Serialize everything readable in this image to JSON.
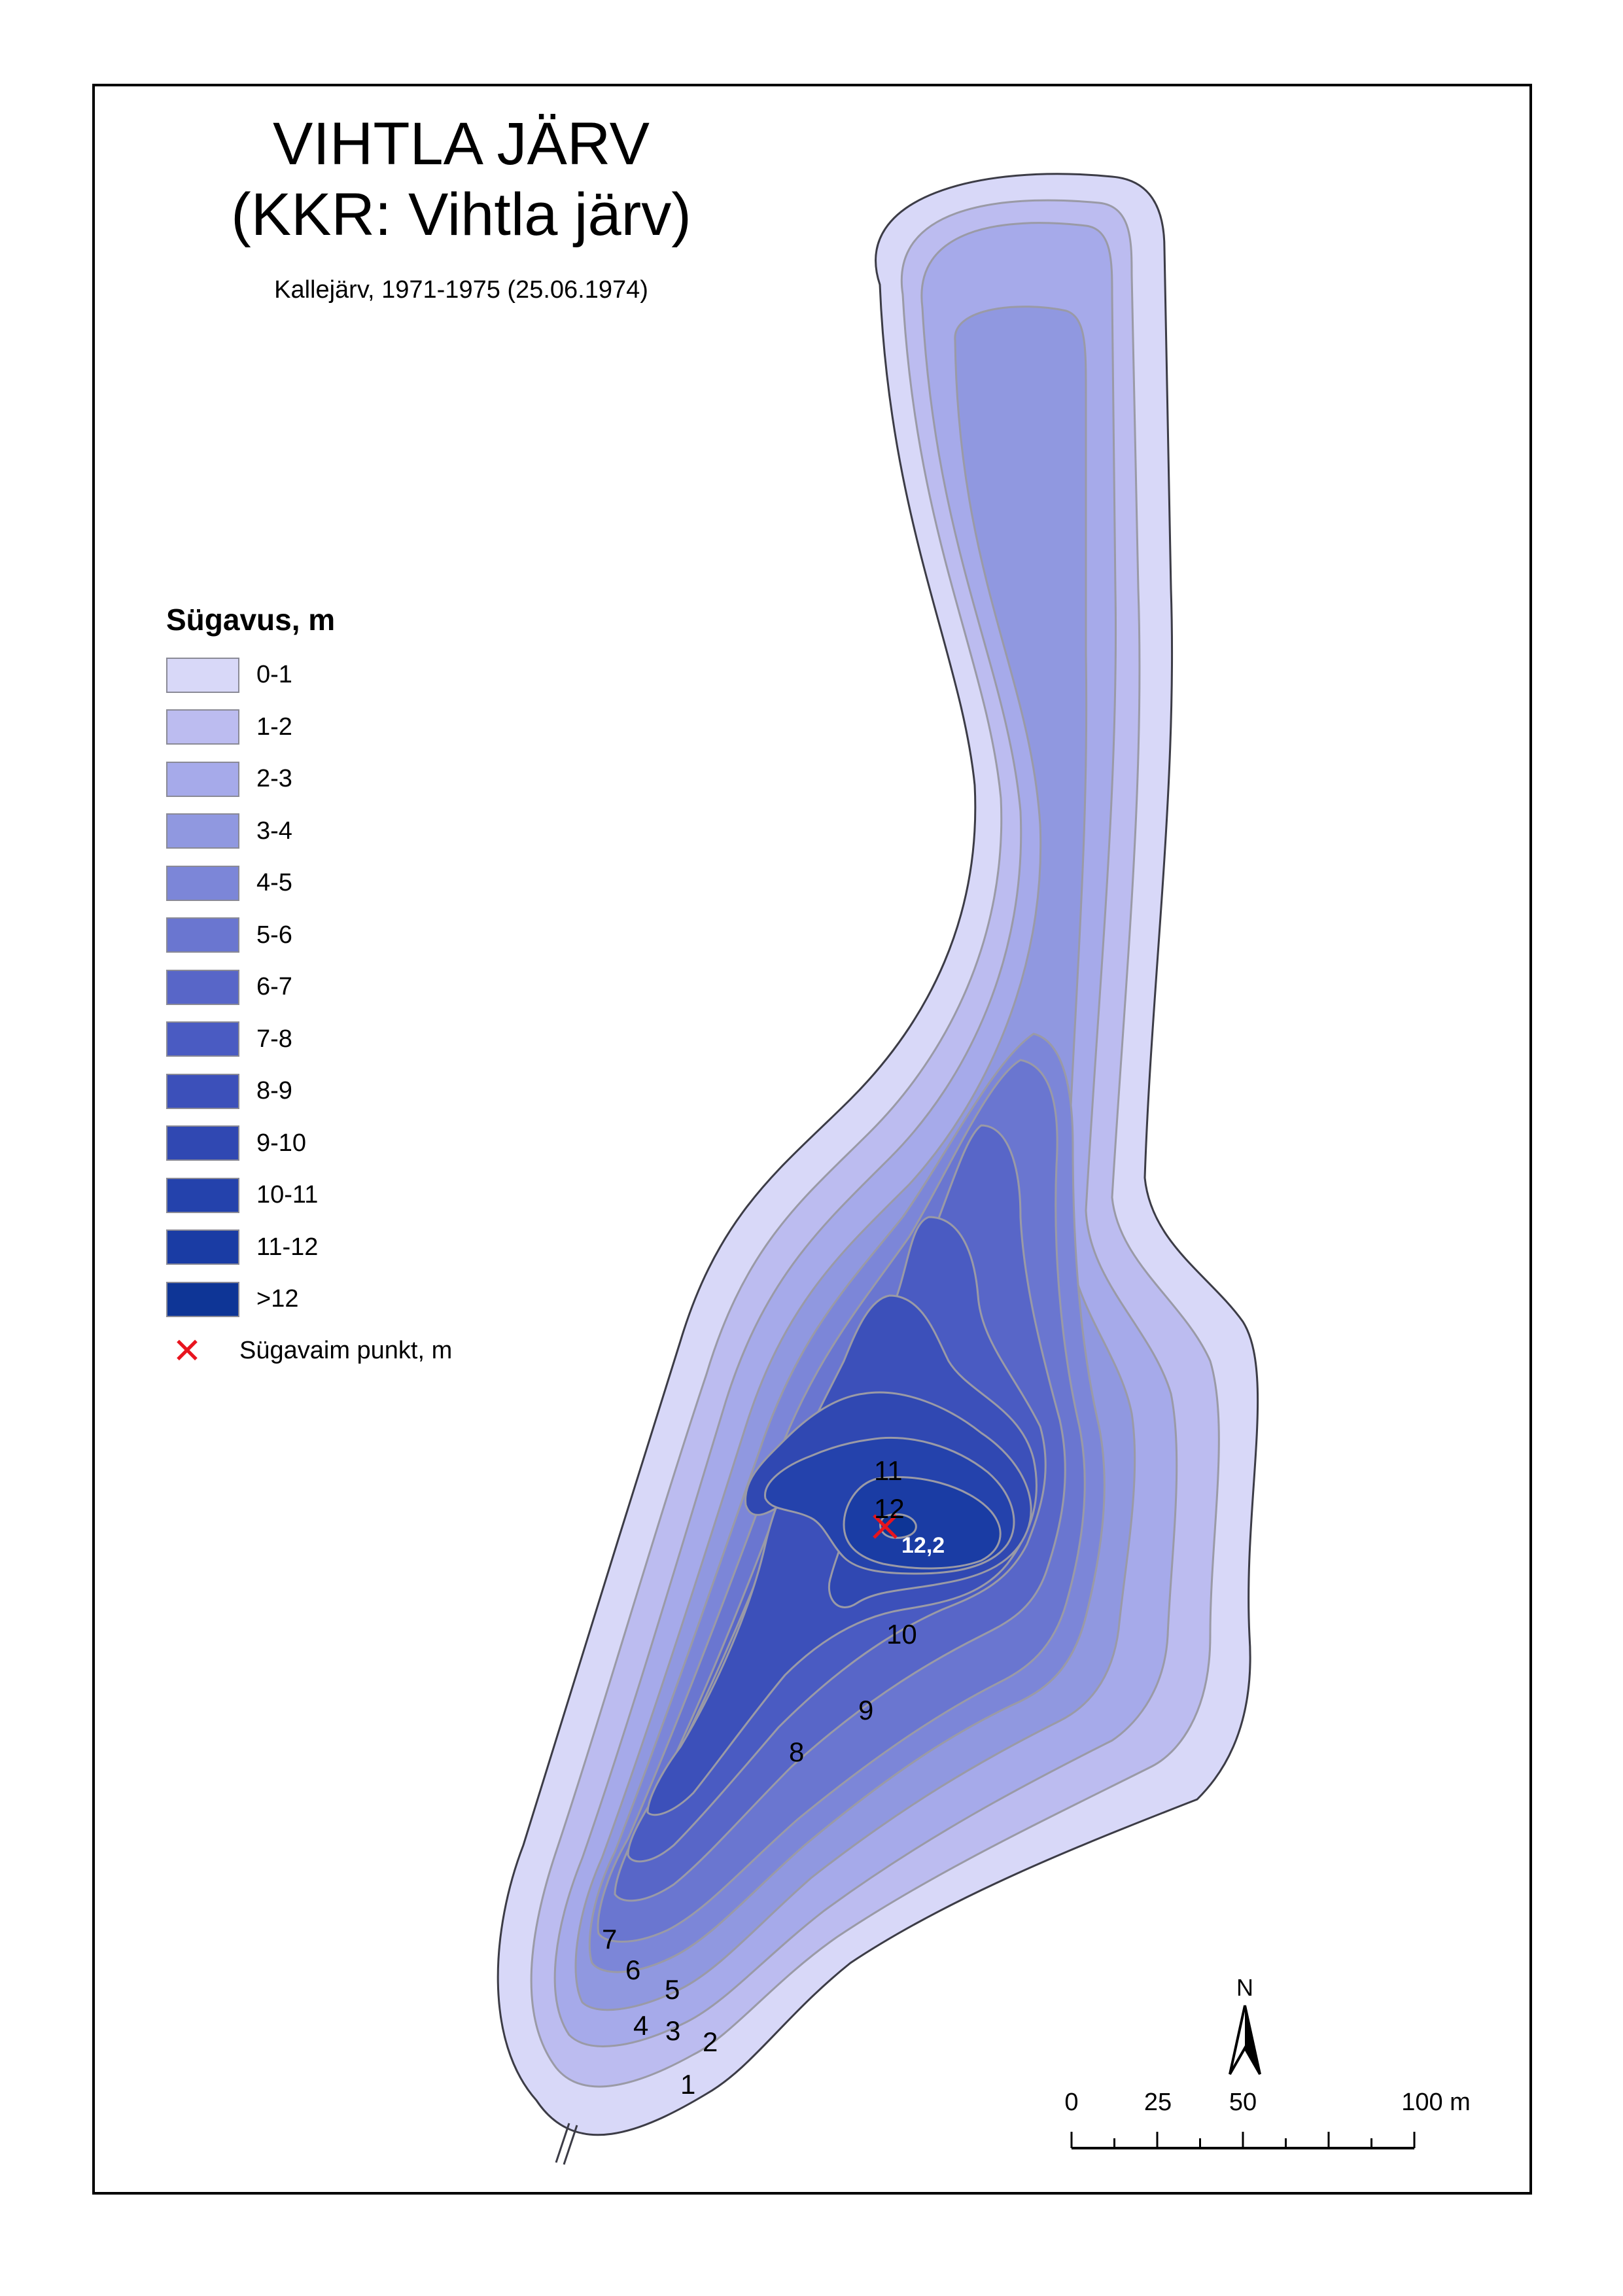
{
  "map": {
    "title_line1": "VIHTLA JÄRV",
    "title_line2": "(KKR: Vihtla järv)",
    "subtitle": "Kallejärv, 1971-1975 (25.06.1974)"
  },
  "legend": {
    "title": "Sügavus, m",
    "classes": [
      {
        "label": "0-1",
        "color": "#d8d8f8"
      },
      {
        "label": "1-2",
        "color": "#bcbcf0"
      },
      {
        "label": "2-3",
        "color": "#a6aaea"
      },
      {
        "label": "3-4",
        "color": "#9098e0"
      },
      {
        "label": "4-5",
        "color": "#7c86d8"
      },
      {
        "label": "5-6",
        "color": "#6a76d0"
      },
      {
        "label": "6-7",
        "color": "#5866c8"
      },
      {
        "label": "7-8",
        "color": "#4a5bc2"
      },
      {
        "label": "8-9",
        "color": "#3c50ba"
      },
      {
        "label": "9-10",
        "color": "#3048b2"
      },
      {
        "label": "10-11",
        "color": "#2442ac"
      },
      {
        "label": "11-12",
        "color": "#1a3ca4"
      },
      {
        "label": ">12",
        "color": "#0e3596"
      }
    ],
    "deepest_point_label": "Sügavaim punkt, m",
    "deepest_point_color": "#e8141e"
  },
  "contour_labels": [
    "11",
    "12",
    "10",
    "9",
    "8",
    "7",
    "6",
    "5",
    "4",
    "3",
    "2",
    "1"
  ],
  "deepest_point_value": "12,2",
  "north_arrow": {
    "label": "N"
  },
  "scale_bar": {
    "ticks": [
      "0",
      "25",
      "50",
      "100 m"
    ]
  },
  "colors": {
    "contour_line": "#9a9aa6",
    "shore_line": "#3c3c46"
  }
}
